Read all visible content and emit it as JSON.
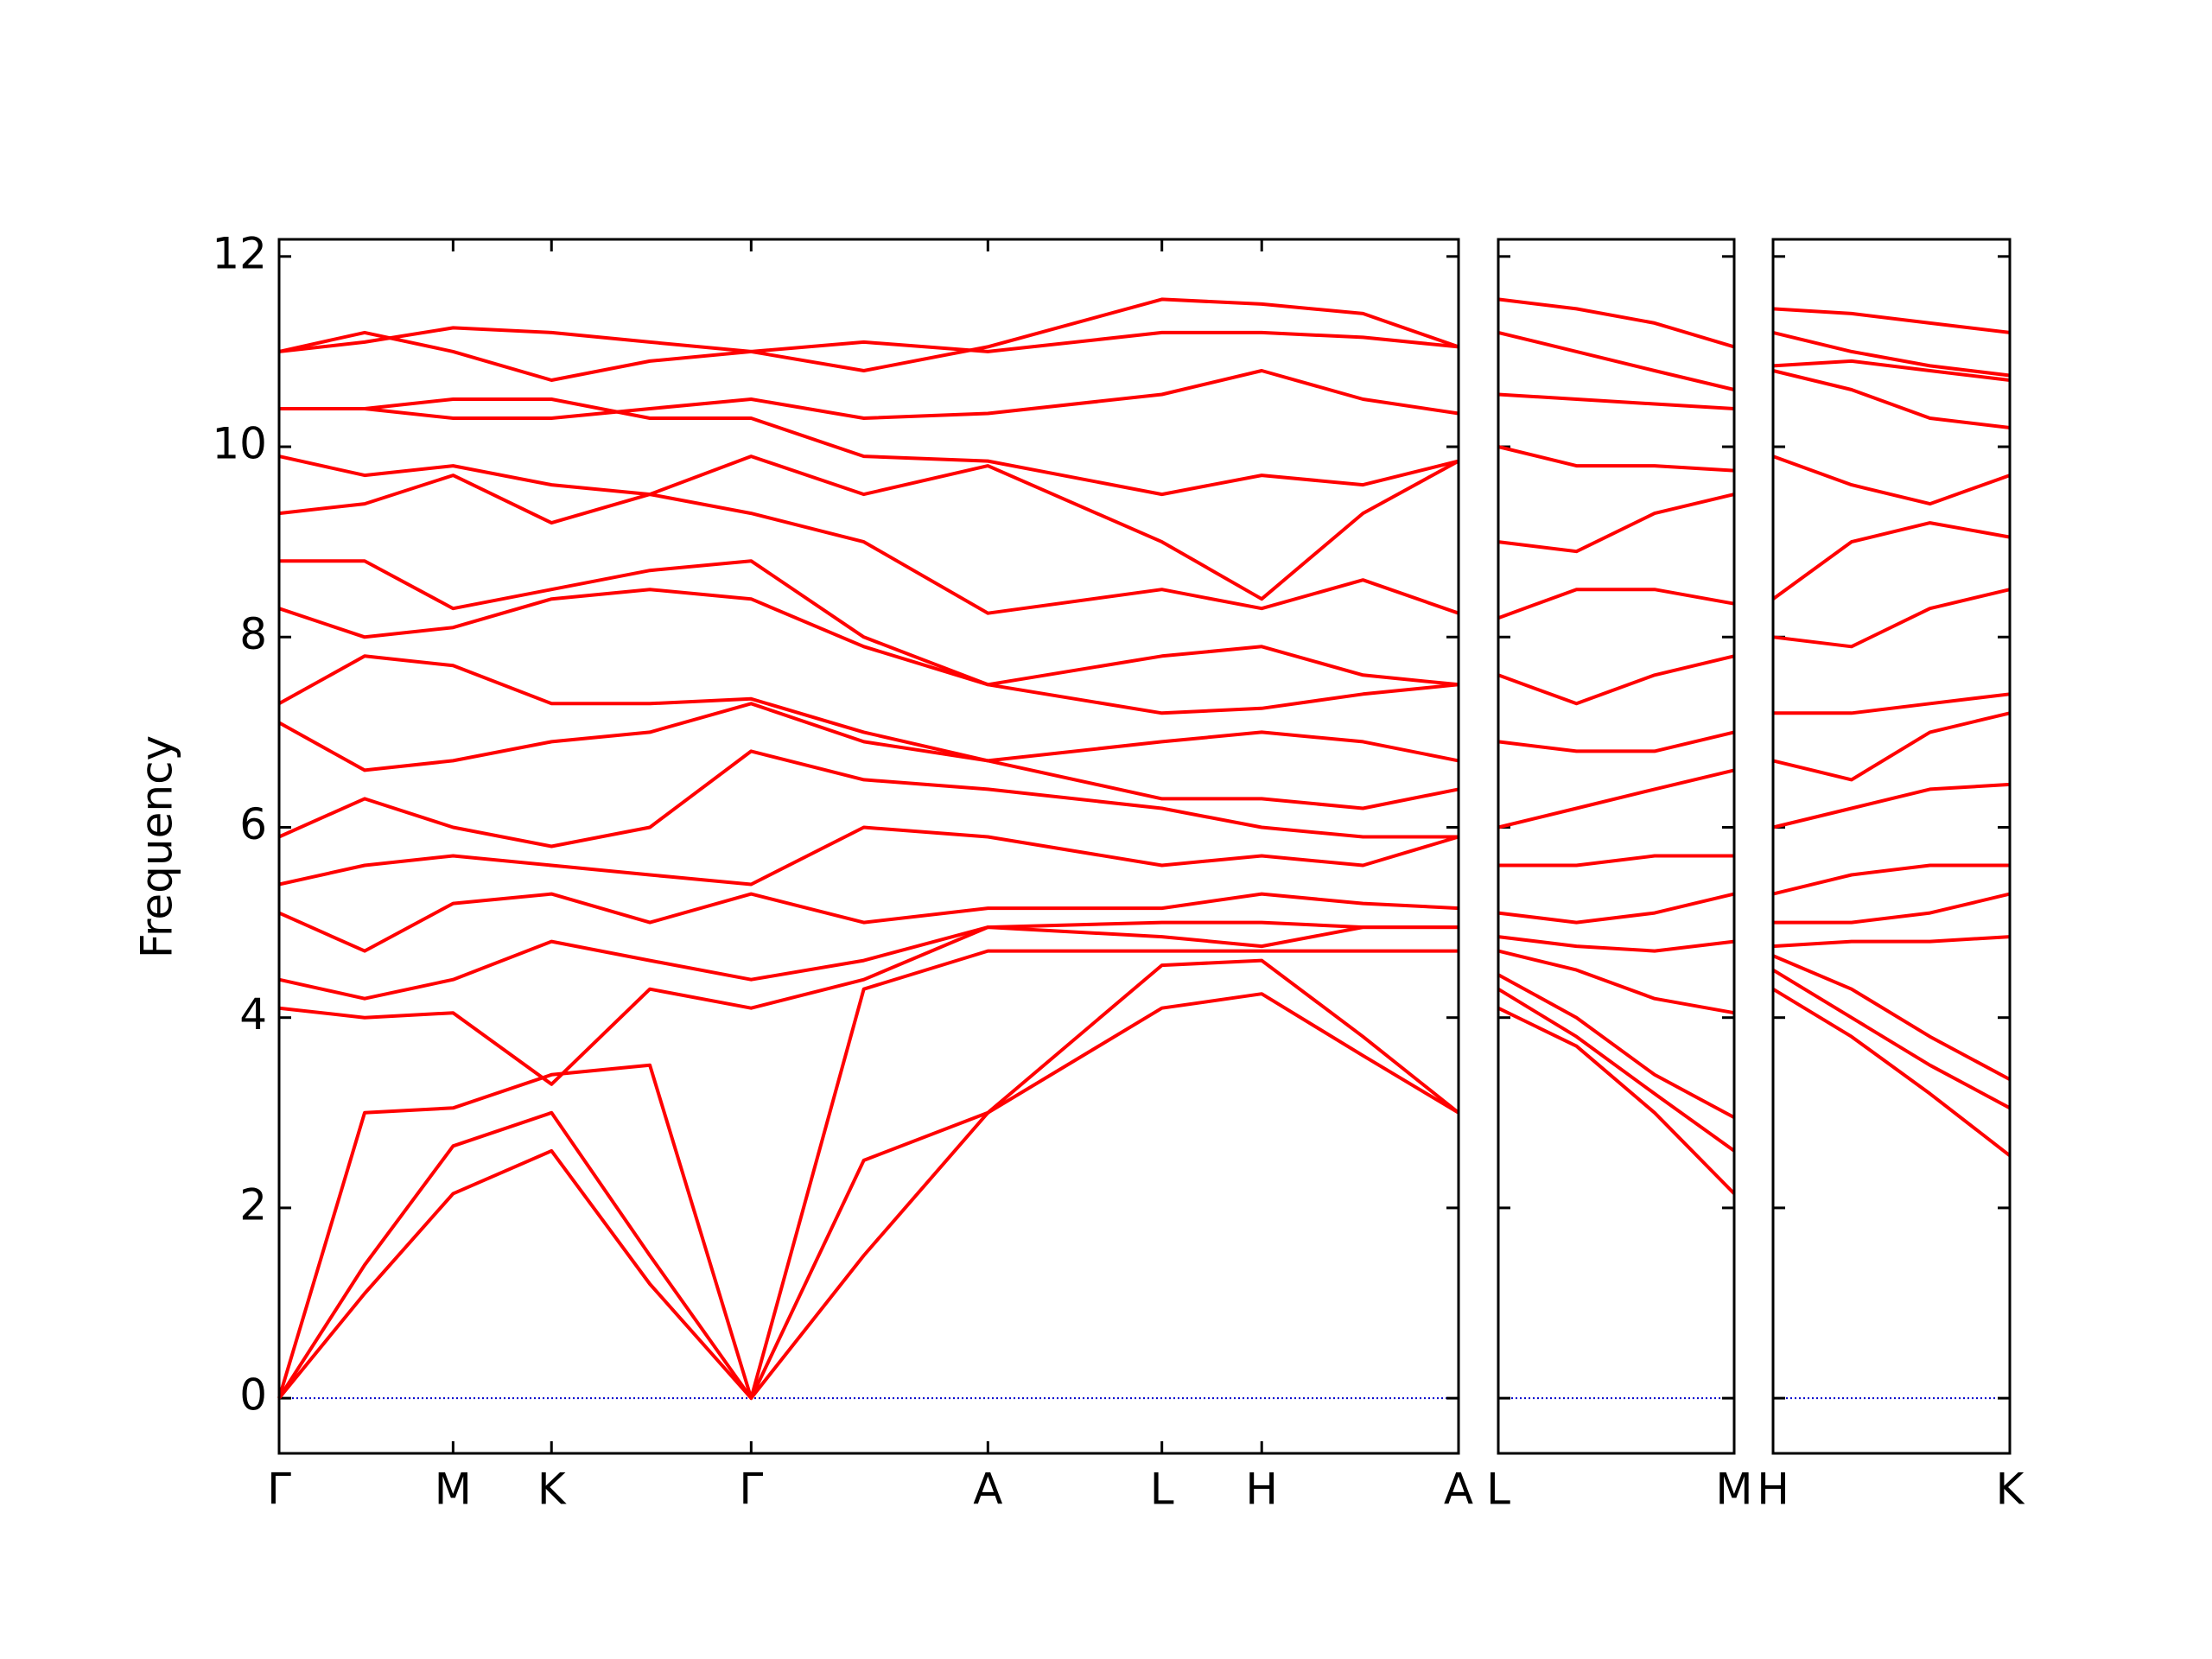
{
  "chart_data": [
    {
      "type": "line",
      "ylabel": "Frequency",
      "color": "#ff0000",
      "xlim": [
        0,
        8.27
      ],
      "ylim": [
        -0.58,
        12.18
      ],
      "yticks": [
        0,
        2,
        4,
        6,
        8,
        10,
        12
      ],
      "xticks": [
        {
          "value": 0,
          "label": "Γ"
        },
        {
          "value": 1.22,
          "label": "M"
        },
        {
          "value": 1.91,
          "label": "K"
        },
        {
          "value": 3.31,
          "label": "Γ"
        },
        {
          "value": 4.97,
          "label": "A"
        },
        {
          "value": 6.19,
          "label": "L"
        },
        {
          "value": 6.89,
          "label": "H"
        },
        {
          "value": 8.27,
          "label": "A"
        }
      ],
      "x": [
        0,
        0.6,
        1.22,
        1.91,
        2.6,
        3.31,
        4.1,
        4.97,
        6.19,
        6.89,
        7.6,
        8.27
      ],
      "series": [
        {
          "values": [
            0,
            1.1,
            2.15,
            2.6,
            1.2,
            0,
            1.5,
            3.0,
            4.1,
            4.25,
            3.6,
            3.0
          ]
        },
        {
          "values": [
            0,
            1.4,
            2.65,
            3.0,
            1.5,
            0,
            2.5,
            3.0,
            4.55,
            4.6,
            3.8,
            3.0
          ]
        },
        {
          "values": [
            0,
            3.0,
            3.05,
            3.4,
            3.5,
            0,
            4.3,
            4.7,
            4.7,
            4.7,
            4.7,
            4.7
          ]
        },
        {
          "values": [
            4.1,
            4.0,
            4.05,
            3.3,
            4.3,
            4.1,
            4.4,
            4.95,
            4.85,
            4.75,
            4.95,
            4.95
          ]
        },
        {
          "values": [
            4.4,
            4.2,
            4.4,
            4.8,
            4.6,
            4.4,
            4.6,
            4.95,
            5.0,
            5.0,
            4.95,
            4.95
          ]
        },
        {
          "values": [
            5.1,
            4.7,
            5.2,
            5.3,
            5.0,
            5.3,
            5.0,
            5.15,
            5.15,
            5.3,
            5.2,
            5.15
          ]
        },
        {
          "values": [
            5.4,
            5.6,
            5.7,
            5.6,
            5.5,
            5.4,
            6.0,
            5.9,
            5.6,
            5.7,
            5.6,
            5.9
          ]
        },
        {
          "values": [
            5.9,
            6.3,
            6.0,
            5.8,
            6.0,
            6.8,
            6.5,
            6.4,
            6.2,
            6.0,
            5.9,
            5.9
          ]
        },
        {
          "values": [
            7.1,
            6.6,
            6.7,
            6.9,
            7.0,
            7.3,
            6.9,
            6.7,
            6.3,
            6.3,
            6.2,
            6.4
          ]
        },
        {
          "values": [
            7.3,
            7.8,
            7.7,
            7.3,
            7.3,
            7.35,
            7.0,
            6.7,
            6.9,
            7.0,
            6.9,
            6.7
          ]
        },
        {
          "values": [
            8.3,
            8.0,
            8.1,
            8.4,
            8.5,
            8.4,
            7.9,
            7.5,
            7.2,
            7.25,
            7.4,
            7.5
          ]
        },
        {
          "values": [
            8.8,
            8.8,
            8.3,
            8.5,
            8.7,
            8.8,
            8.0,
            7.5,
            7.8,
            7.9,
            7.6,
            7.5
          ]
        },
        {
          "values": [
            9.3,
            9.4,
            9.7,
            9.2,
            9.5,
            9.3,
            9.0,
            8.25,
            8.5,
            8.3,
            8.6,
            8.25
          ]
        },
        {
          "values": [
            9.9,
            9.7,
            9.8,
            9.6,
            9.5,
            9.9,
            9.5,
            9.8,
            9.0,
            8.4,
            9.3,
            9.85
          ]
        },
        {
          "values": [
            10.4,
            10.4,
            10.5,
            10.5,
            10.3,
            10.3,
            9.9,
            9.85,
            9.5,
            9.7,
            9.6,
            9.85
          ]
        },
        {
          "values": [
            10.4,
            10.4,
            10.3,
            10.3,
            10.4,
            10.5,
            10.3,
            10.35,
            10.55,
            10.8,
            10.5,
            10.35
          ]
        },
        {
          "values": [
            11.0,
            11.2,
            11.0,
            10.7,
            10.9,
            11.0,
            11.1,
            11.0,
            11.2,
            11.2,
            11.15,
            11.05
          ]
        },
        {
          "values": [
            11.0,
            11.1,
            11.25,
            11.2,
            11.1,
            11.0,
            10.8,
            11.05,
            11.55,
            11.5,
            11.4,
            11.05
          ]
        }
      ]
    },
    {
      "type": "line",
      "color": "#ff0000",
      "xlim": [
        0,
        1.66
      ],
      "ylim": [
        -0.58,
        12.18
      ],
      "yticks": [
        0,
        2,
        4,
        6,
        8,
        10,
        12
      ],
      "xticks": [
        {
          "value": 0,
          "label": "L"
        },
        {
          "value": 1.66,
          "label": "M"
        }
      ],
      "x": [
        0,
        0.55,
        1.1,
        1.66
      ],
      "series": [
        {
          "values": [
            4.1,
            3.7,
            3.0,
            2.15
          ]
        },
        {
          "values": [
            4.3,
            3.8,
            3.2,
            2.6
          ]
        },
        {
          "values": [
            4.45,
            4.0,
            3.4,
            2.95
          ]
        },
        {
          "values": [
            4.7,
            4.5,
            4.2,
            4.05
          ]
        },
        {
          "values": [
            4.85,
            4.75,
            4.7,
            4.8
          ]
        },
        {
          "values": [
            5.1,
            5.0,
            5.1,
            5.3
          ]
        },
        {
          "values": [
            5.6,
            5.6,
            5.7,
            5.7
          ]
        },
        {
          "values": [
            6.0,
            6.2,
            6.4,
            6.6
          ]
        },
        {
          "values": [
            6.9,
            6.8,
            6.8,
            7.0
          ]
        },
        {
          "values": [
            7.6,
            7.3,
            7.6,
            7.8
          ]
        },
        {
          "values": [
            8.2,
            8.5,
            8.5,
            8.35
          ]
        },
        {
          "values": [
            9.0,
            8.9,
            9.3,
            9.5
          ]
        },
        {
          "values": [
            10.0,
            9.8,
            9.8,
            9.75
          ]
        },
        {
          "values": [
            10.55,
            10.5,
            10.45,
            10.4
          ]
        },
        {
          "values": [
            11.2,
            11.0,
            10.8,
            10.6
          ]
        },
        {
          "values": [
            11.55,
            11.45,
            11.3,
            11.05
          ]
        }
      ]
    },
    {
      "type": "line",
      "color": "#ff0000",
      "xlim": [
        0,
        1.66
      ],
      "ylim": [
        -0.58,
        12.18
      ],
      "yticks": [
        0,
        2,
        4,
        6,
        8,
        10,
        12
      ],
      "xticks": [
        {
          "value": 0,
          "label": "H"
        },
        {
          "value": 1.66,
          "label": "K"
        }
      ],
      "x": [
        0,
        0.55,
        1.1,
        1.66
      ],
      "series": [
        {
          "values": [
            4.3,
            3.8,
            3.2,
            2.55
          ]
        },
        {
          "values": [
            4.5,
            4.0,
            3.5,
            3.05
          ]
        },
        {
          "values": [
            4.65,
            4.3,
            3.8,
            3.35
          ]
        },
        {
          "values": [
            4.75,
            4.8,
            4.8,
            4.85
          ]
        },
        {
          "values": [
            5.0,
            5.0,
            5.1,
            5.3
          ]
        },
        {
          "values": [
            5.3,
            5.5,
            5.6,
            5.6
          ]
        },
        {
          "values": [
            6.0,
            6.2,
            6.4,
            6.45
          ]
        },
        {
          "values": [
            6.7,
            6.5,
            7.0,
            7.2
          ]
        },
        {
          "values": [
            7.2,
            7.2,
            7.3,
            7.4
          ]
        },
        {
          "values": [
            8.0,
            7.9,
            8.3,
            8.5
          ]
        },
        {
          "values": [
            8.4,
            9.0,
            9.2,
            9.05
          ]
        },
        {
          "values": [
            9.9,
            9.6,
            9.4,
            9.7
          ]
        },
        {
          "values": [
            10.8,
            10.6,
            10.3,
            10.2
          ]
        },
        {
          "values": [
            10.85,
            10.9,
            10.8,
            10.7
          ]
        },
        {
          "values": [
            11.2,
            11.0,
            10.85,
            10.75
          ]
        },
        {
          "values": [
            11.45,
            11.4,
            11.3,
            11.2
          ]
        }
      ]
    }
  ]
}
